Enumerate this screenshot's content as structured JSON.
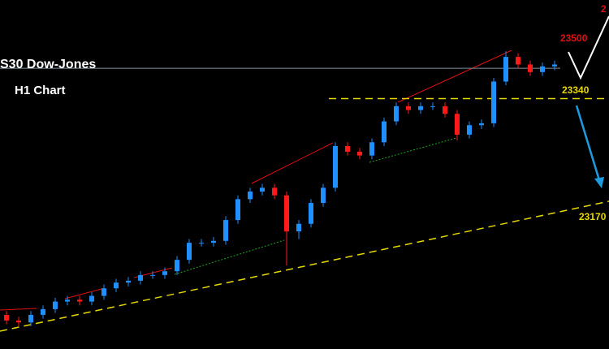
{
  "chart_data": {
    "type": "candlestick",
    "title": "S30 Dow-Jones",
    "subtitle": "H1 Chart",
    "annotations": [
      "23500",
      "23340",
      "23170",
      "2"
    ],
    "ylim": [
      22680,
      23600
    ],
    "price_line": 23420,
    "levels": [
      23340
    ],
    "up_color": "#1e90ff",
    "down_color": "#ff1a1a",
    "open": [
      22770,
      22755,
      22750,
      22770,
      22785,
      22805,
      22810,
      22805,
      22820,
      22840,
      22855,
      22860,
      22875,
      22875,
      22885,
      22915,
      22960,
      22960,
      22965,
      23020,
      23075,
      23095,
      23105,
      23085,
      22990,
      23010,
      23065,
      23105,
      23215,
      23200,
      23190,
      23225,
      23280,
      23320,
      23310,
      23320,
      23320,
      23300,
      23245,
      23270,
      23275,
      23385,
      23450,
      23430,
      23410,
      23425
    ],
    "high": [
      22780,
      22765,
      22780,
      22795,
      22815,
      22820,
      22820,
      22830,
      22850,
      22865,
      22870,
      22885,
      22885,
      22895,
      22925,
      22970,
      22970,
      22975,
      23030,
      23085,
      23105,
      23115,
      23115,
      23095,
      23020,
      23075,
      23115,
      23225,
      23225,
      23210,
      23235,
      23290,
      23330,
      23330,
      23330,
      23330,
      23330,
      23310,
      23280,
      23285,
      23395,
      23465,
      23460,
      23440,
      23435,
      23440
    ],
    "low": [
      22745,
      22740,
      22740,
      22760,
      22775,
      22795,
      22795,
      22795,
      22810,
      22830,
      22845,
      22850,
      22865,
      22865,
      22875,
      22905,
      22950,
      22950,
      22955,
      23010,
      23065,
      23085,
      23075,
      22900,
      22970,
      23000,
      23055,
      23095,
      23190,
      23180,
      23180,
      23215,
      23270,
      23300,
      23300,
      23310,
      23290,
      23230,
      23235,
      23260,
      23265,
      23375,
      23420,
      23400,
      23400,
      23415
    ],
    "close": [
      22755,
      22750,
      22770,
      22785,
      22805,
      22810,
      22805,
      22820,
      22840,
      22855,
      22860,
      22875,
      22875,
      22885,
      22915,
      22960,
      22960,
      22965,
      23020,
      23075,
      23095,
      23105,
      23085,
      22990,
      23010,
      23065,
      23105,
      23215,
      23200,
      23190,
      23225,
      23280,
      23320,
      23310,
      23320,
      23320,
      23300,
      23245,
      23270,
      23275,
      23385,
      23450,
      23430,
      23410,
      23425,
      23430
    ]
  }
}
